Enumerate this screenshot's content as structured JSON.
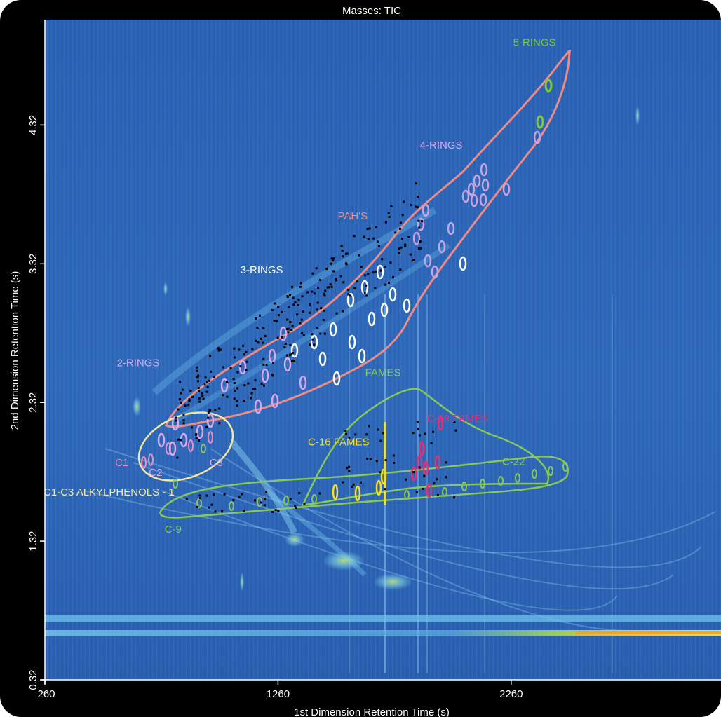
{
  "chart_data": {
    "type": "heatmap",
    "title": "Masses:  TIC",
    "xlabel": "1st Dimension Retention Time (s)",
    "ylabel": "2nd Dimension Retention Time (s)",
    "xlim": [
      260,
      3160
    ],
    "ylim": [
      0.32,
      5.08
    ],
    "x_ticks": [
      260,
      1260,
      2260
    ],
    "y_ticks": [
      0.32,
      1.32,
      2.32,
      3.32,
      4.32
    ],
    "colors": {
      "background": "#2c64b5",
      "frame": "#000000",
      "pah_region": "#f08a84",
      "fames_region": "#88c85a",
      "c22_region": "#88c85a",
      "alkylphenols_region": "#f2e79c",
      "c16_peaks": "#f5e020",
      "c18_peaks": "#e0307a"
    },
    "annotations": [
      {
        "text": "5-RINGS",
        "x": 2360,
        "y": 4.89,
        "color": "#7ec83a"
      },
      {
        "text": "4-RINGS",
        "x": 1960,
        "y": 4.15,
        "color": "#d9a8ec"
      },
      {
        "text": "PAH'S",
        "x": 1580,
        "y": 3.64,
        "color": "#f08a84"
      },
      {
        "text": "3-RINGS",
        "x": 1190,
        "y": 3.25,
        "color": "#ffffff"
      },
      {
        "text": "2-RINGS",
        "x": 660,
        "y": 2.58,
        "color": "#d9a8ec"
      },
      {
        "text": "FAMES",
        "x": 1710,
        "y": 2.51,
        "color": "#88c85a"
      },
      {
        "text": "C-18 FAMES",
        "x": 2030,
        "y": 2.18,
        "color": "#e0307a"
      },
      {
        "text": "C-16 FAMES",
        "x": 1520,
        "y": 2.01,
        "color": "#f5e020"
      },
      {
        "text": "C-22",
        "x": 2270,
        "y": 1.87,
        "color": "#88c85a"
      },
      {
        "text": "C1",
        "x": 590,
        "y": 1.86,
        "color": "#e98fc2"
      },
      {
        "text": "C2",
        "x": 735,
        "y": 1.79,
        "color": "#d9a8ec"
      },
      {
        "text": "C3",
        "x": 995,
        "y": 1.86,
        "color": "#d9a8ec"
      },
      {
        "text": "C1-C3 ALKYLPHENOLS - 1",
        "x": 535,
        "y": 1.65,
        "color": "#f2e79c"
      },
      {
        "text": "C-9",
        "x": 810,
        "y": 1.38,
        "color": "#88c85a"
      }
    ]
  }
}
